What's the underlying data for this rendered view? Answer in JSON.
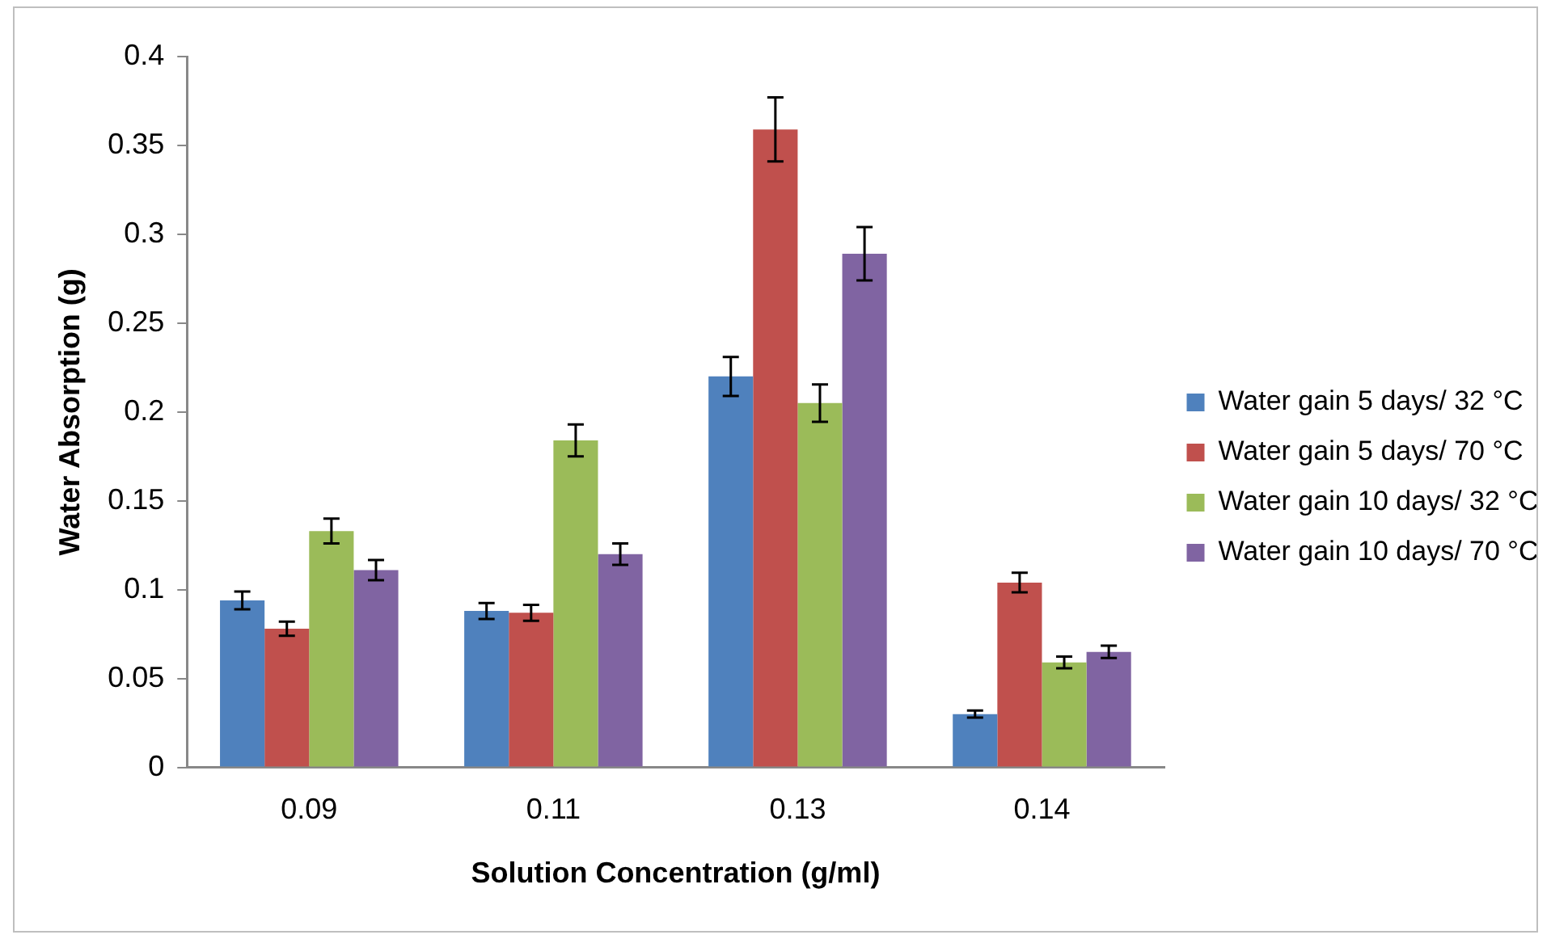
{
  "chart_data": {
    "type": "bar",
    "xlabel": "Solution Concentration (g/ml)",
    "ylabel": "Water Absorption (g)",
    "categories": [
      "0.09",
      "0.11",
      "0.13",
      "0.14"
    ],
    "series": [
      {
        "name": "Water gain 5 days/ 32 °C",
        "color": "#4f81bd",
        "values": [
          0.094,
          0.088,
          0.22,
          0.03
        ],
        "errors": [
          0.005,
          0.0045,
          0.011,
          0.002
        ]
      },
      {
        "name": "Water gain 5 days/ 70 °C",
        "color": "#c0504d",
        "values": [
          0.078,
          0.087,
          0.359,
          0.104
        ],
        "errors": [
          0.004,
          0.0045,
          0.018,
          0.0055
        ]
      },
      {
        "name": "Water gain 10 days/ 32 °C",
        "color": "#9bbb59",
        "values": [
          0.133,
          0.184,
          0.205,
          0.059
        ],
        "errors": [
          0.007,
          0.009,
          0.0105,
          0.0033
        ]
      },
      {
        "name": "Water gain 10 days/ 70 °C",
        "color": "#8064a2",
        "values": [
          0.111,
          0.12,
          0.289,
          0.065
        ],
        "errors": [
          0.0057,
          0.006,
          0.015,
          0.0035
        ]
      }
    ],
    "ylim": [
      0,
      0.4
    ],
    "yticks": [
      0,
      0.05,
      0.1,
      0.15,
      0.2,
      0.25,
      0.3,
      0.35,
      0.4
    ],
    "grid": false,
    "legend": "right"
  }
}
